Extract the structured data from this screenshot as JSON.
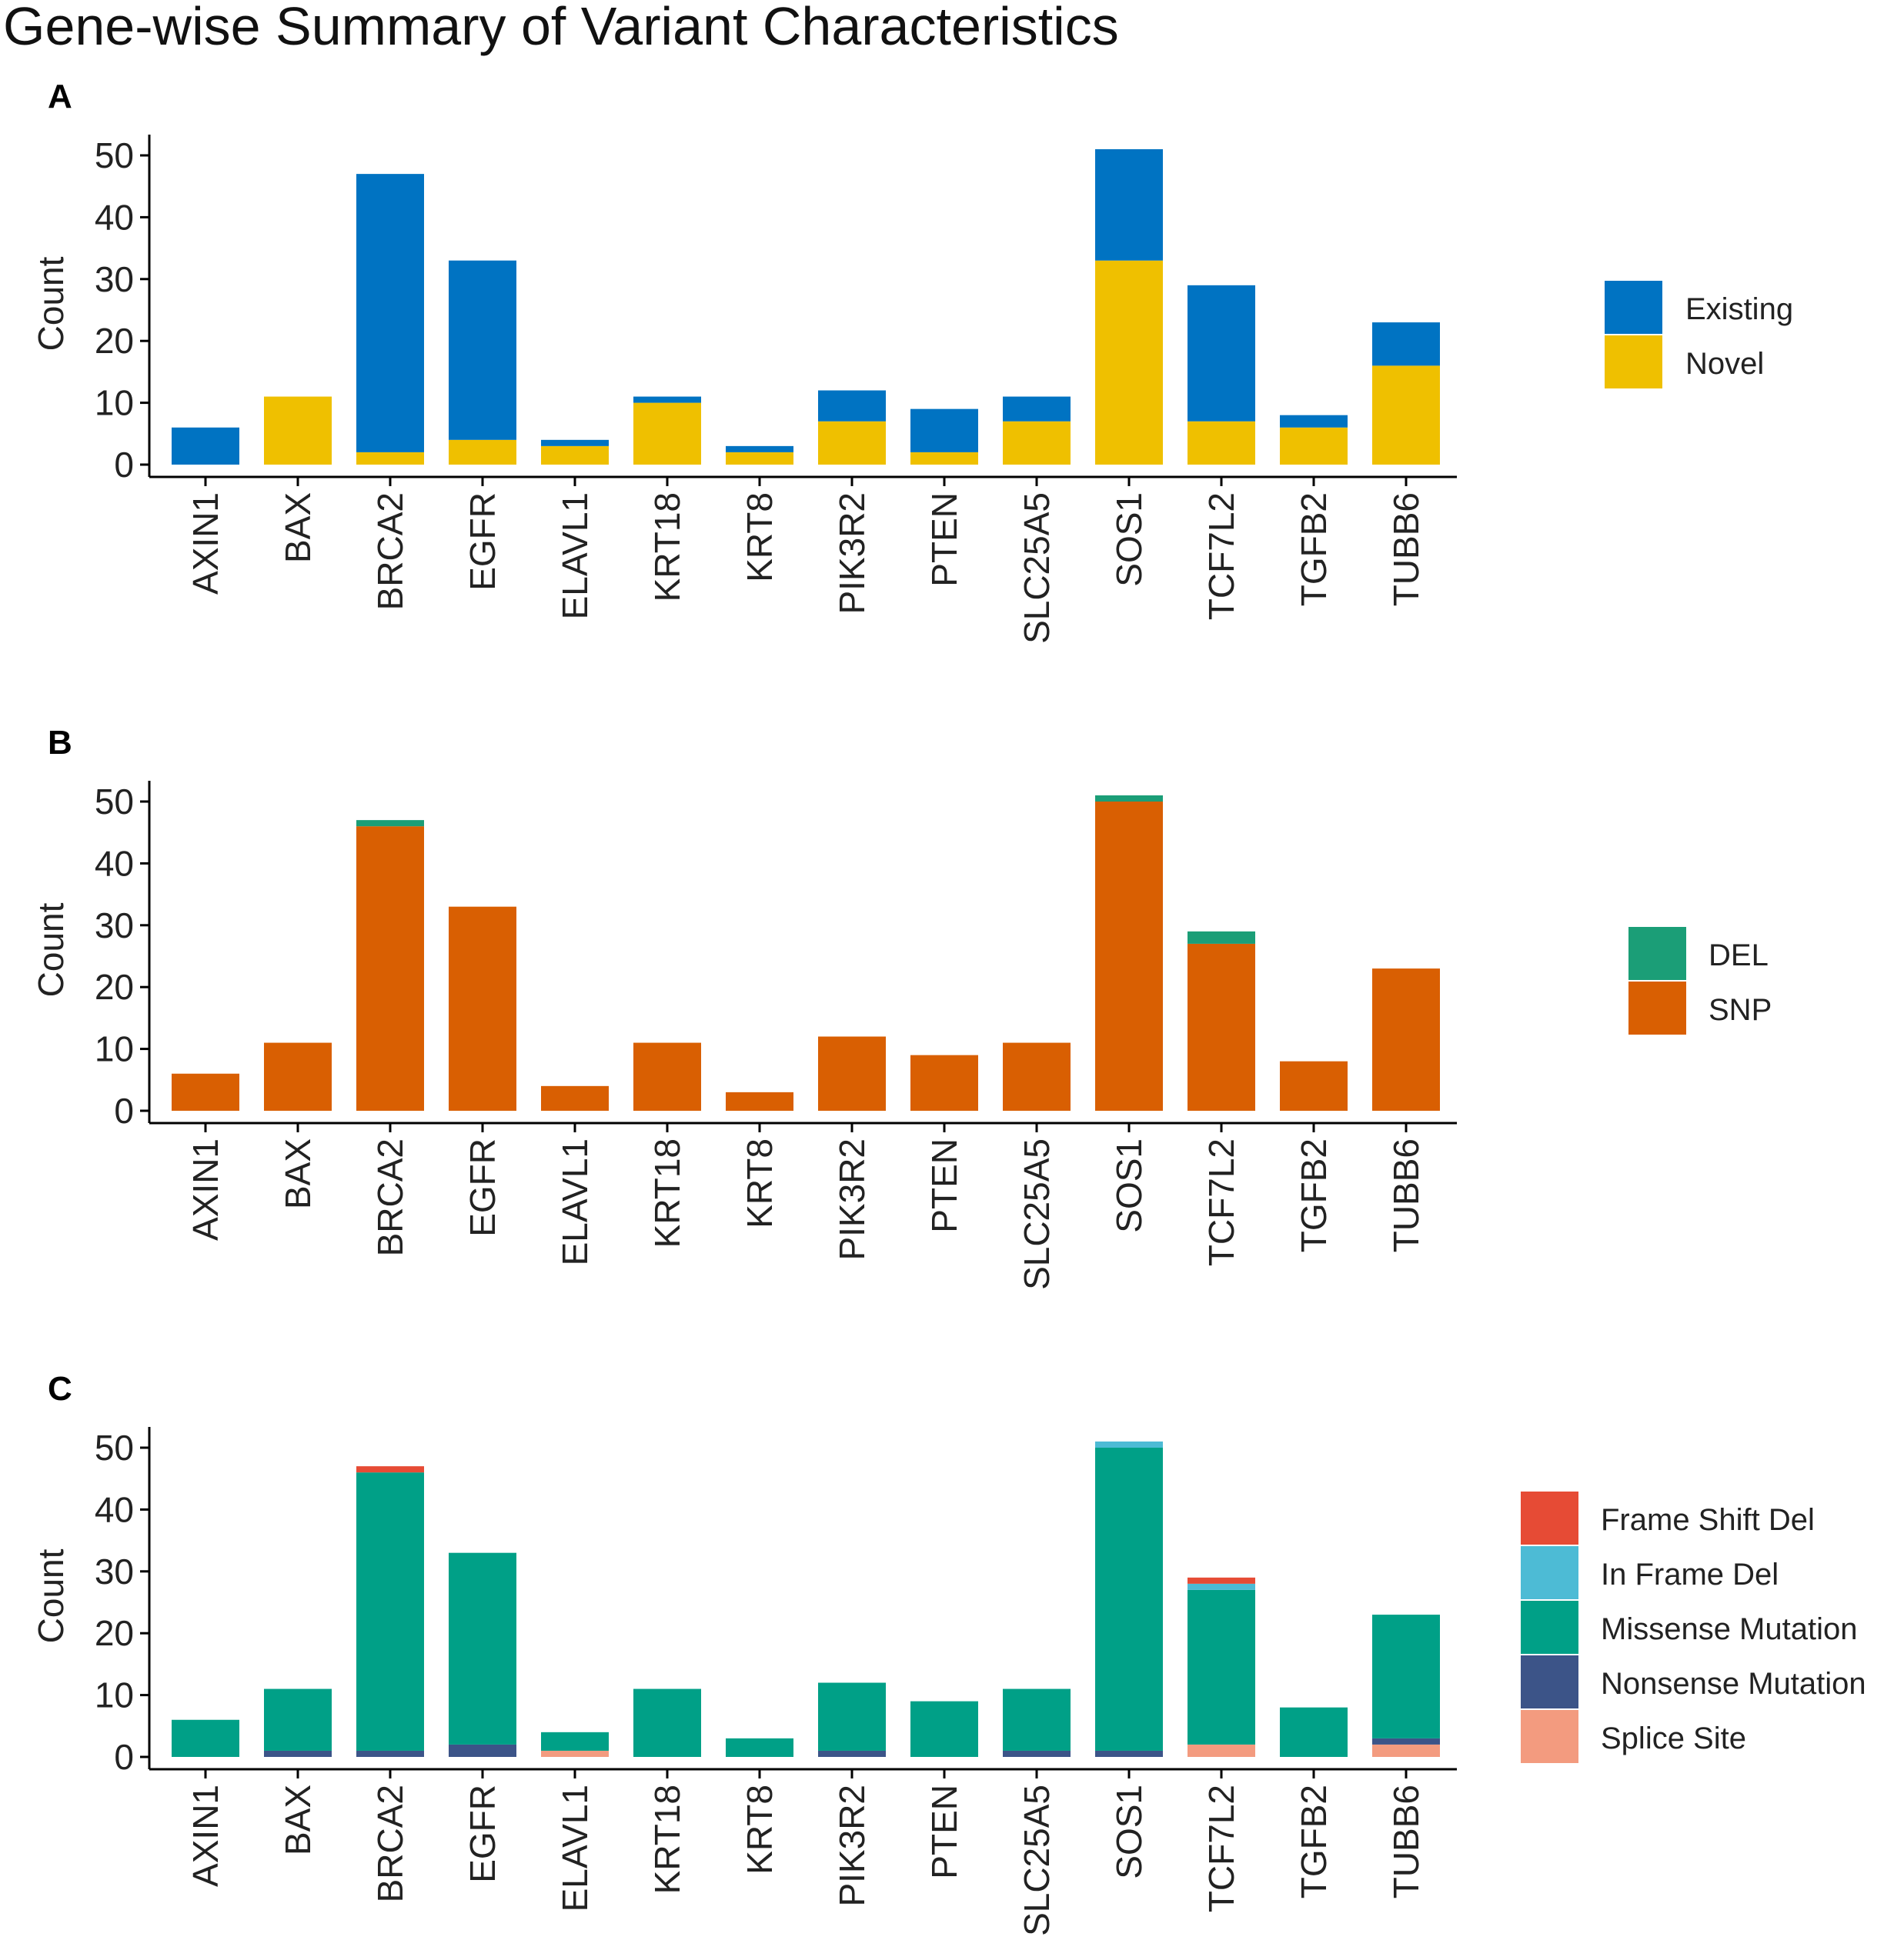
{
  "title": "Gene-wise Summary of Variant Characteristics",
  "chart_data": [
    {
      "panel": "A",
      "type": "bar",
      "stacked": true,
      "ylabel": "Count",
      "ylim": [
        0,
        52
      ],
      "yticks": [
        0,
        10,
        20,
        30,
        40,
        50
      ],
      "categories": [
        "AXIN1",
        "BAX",
        "BRCA2",
        "EGFR",
        "ELAVL1",
        "KRT18",
        "KRT8",
        "PIK3R2",
        "PTEN",
        "SLC25A5",
        "SOS1",
        "TCF7L2",
        "TGFB2",
        "TUBB6"
      ],
      "series": [
        {
          "name": "Novel",
          "color": "#EFC000",
          "values": [
            0,
            11,
            2,
            4,
            3,
            10,
            2,
            7,
            2,
            7,
            33,
            7,
            6,
            16
          ]
        },
        {
          "name": "Existing",
          "color": "#0073C2",
          "values": [
            6,
            0,
            45,
            29,
            1,
            1,
            1,
            5,
            7,
            4,
            18,
            22,
            2,
            7
          ]
        }
      ],
      "legend_order": [
        "Existing",
        "Novel"
      ],
      "legend": "right"
    },
    {
      "panel": "B",
      "type": "bar",
      "stacked": true,
      "ylabel": "Count",
      "ylim": [
        0,
        52
      ],
      "yticks": [
        0,
        10,
        20,
        30,
        40,
        50
      ],
      "categories": [
        "AXIN1",
        "BAX",
        "BRCA2",
        "EGFR",
        "ELAVL1",
        "KRT18",
        "KRT8",
        "PIK3R2",
        "PTEN",
        "SLC25A5",
        "SOS1",
        "TCF7L2",
        "TGFB2",
        "TUBB6"
      ],
      "series": [
        {
          "name": "SNP",
          "color": "#D95F02",
          "values": [
            6,
            11,
            46,
            33,
            4,
            11,
            3,
            12,
            9,
            11,
            50,
            27,
            8,
            23
          ]
        },
        {
          "name": "DEL",
          "color": "#1B9E77",
          "values": [
            0,
            0,
            1,
            0,
            0,
            0,
            0,
            0,
            0,
            0,
            1,
            2,
            0,
            0
          ]
        }
      ],
      "legend_order": [
        "DEL",
        "SNP"
      ],
      "legend": "right"
    },
    {
      "panel": "C",
      "type": "bar",
      "stacked": true,
      "ylabel": "Count",
      "ylim": [
        0,
        52
      ],
      "yticks": [
        0,
        10,
        20,
        30,
        40,
        50
      ],
      "categories": [
        "AXIN1",
        "BAX",
        "BRCA2",
        "EGFR",
        "ELAVL1",
        "KRT18",
        "KRT8",
        "PIK3R2",
        "PTEN",
        "SLC25A5",
        "SOS1",
        "TCF7L2",
        "TGFB2",
        "TUBB6"
      ],
      "series": [
        {
          "name": "Splice Site",
          "color": "#F39B7F",
          "values": [
            0,
            0,
            0,
            0,
            1,
            0,
            0,
            0,
            0,
            0,
            0,
            2,
            0,
            2
          ]
        },
        {
          "name": "Nonsense Mutation",
          "color": "#3C5488",
          "values": [
            0,
            1,
            1,
            2,
            0,
            0,
            0,
            1,
            0,
            1,
            1,
            0,
            0,
            1
          ]
        },
        {
          "name": "Missense Mutation",
          "color": "#00A087",
          "values": [
            6,
            10,
            45,
            31,
            3,
            11,
            3,
            11,
            9,
            10,
            49,
            25,
            8,
            20
          ]
        },
        {
          "name": "In Frame Del",
          "color": "#4DBBD5",
          "values": [
            0,
            0,
            0,
            0,
            0,
            0,
            0,
            0,
            0,
            0,
            1,
            1,
            0,
            0
          ]
        },
        {
          "name": "Frame Shift Del",
          "color": "#E64B35",
          "values": [
            0,
            0,
            1,
            0,
            0,
            0,
            0,
            0,
            0,
            0,
            0,
            1,
            0,
            0
          ]
        }
      ],
      "legend_order": [
        "Frame Shift Del",
        "In Frame Del",
        "Missense Mutation",
        "Nonsense Mutation",
        "Splice Site"
      ],
      "legend": "right"
    }
  ]
}
